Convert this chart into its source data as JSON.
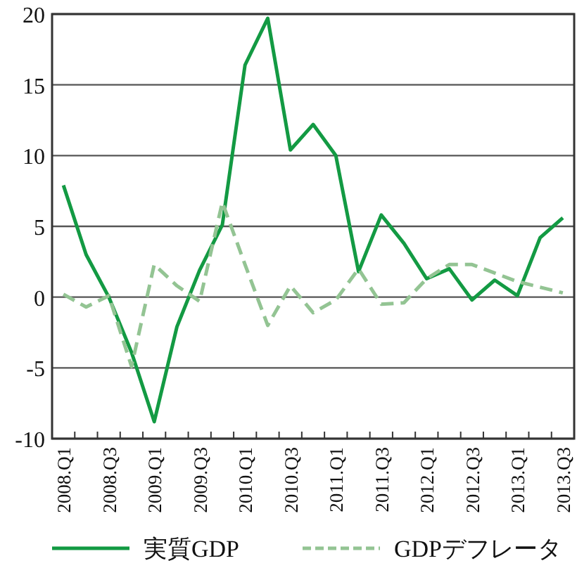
{
  "chart_data": {
    "type": "line",
    "categories": [
      "2008.Q1",
      null,
      "2008.Q3",
      null,
      "2009.Q1",
      null,
      "2009.Q3",
      null,
      "2010.Q1",
      null,
      "2010.Q3",
      null,
      "2011.Q1",
      null,
      "2011.Q3",
      null,
      "2012.Q1",
      null,
      "2012.Q3",
      null,
      "2013.Q1",
      null,
      "2013.Q3"
    ],
    "series": [
      {
        "name": "実質GDP",
        "color": "#139a43",
        "line_style": "solid",
        "values": [
          7.9,
          3.0,
          0.0,
          -3.9,
          -8.8,
          -2.1,
          1.9,
          5.1,
          16.4,
          19.7,
          10.4,
          12.2,
          10.0,
          1.8,
          5.8,
          3.8,
          1.3,
          2.0,
          -0.2,
          1.2,
          0.1,
          4.2,
          5.6
        ]
      },
      {
        "name": "GDPデフレータ",
        "color": "#93c493",
        "line_style": "dashed",
        "values": [
          0.2,
          -0.7,
          0.1,
          -4.9,
          2.3,
          0.8,
          -0.3,
          6.7,
          2.3,
          -2.0,
          0.8,
          -1.1,
          -0.2,
          2.0,
          -0.5,
          -0.4,
          1.3,
          2.3,
          2.3,
          1.7,
          1.1,
          0.7,
          0.3
        ]
      }
    ],
    "ylim": [
      -10,
      20
    ],
    "yticks": [
      -10,
      -5,
      0,
      5,
      10,
      15,
      20
    ],
    "grid": "y",
    "legend": "bottom",
    "marker": "none"
  }
}
